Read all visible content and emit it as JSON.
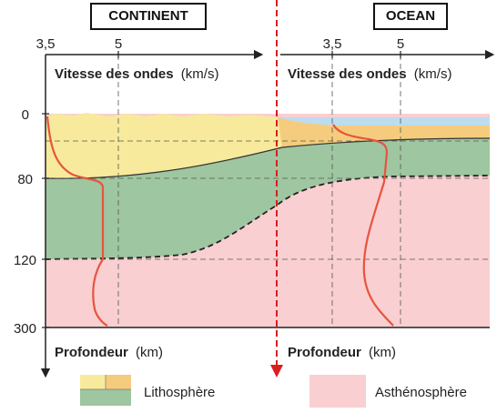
{
  "labels": {
    "continent": "CONTINENT",
    "ocean": "OCEAN"
  },
  "axes": {
    "velocity_title": "Vitesse des ondes",
    "velocity_unit": "(km/s)",
    "depth_title": "Profondeur",
    "depth_unit": "(km)",
    "left_ticks": [
      "3,5",
      "5"
    ],
    "right_ticks": [
      "3,5",
      "5"
    ],
    "depth_ticks": [
      "0",
      "80",
      "120",
      "300"
    ]
  },
  "legend": {
    "lithosphere": "Lithosphère",
    "asthenosphere": "Asthénosphère"
  },
  "colors": {
    "crust_yellow": "#f7ea9c",
    "crust_orange": "#f5cc7d",
    "mantle_green": "#9ec6a0",
    "asthenosphere_pink": "#f9cfd1",
    "water_blue": "#bddcf0",
    "velocity_curve": "#e8533f",
    "divider": "#d81e1e"
  }
}
